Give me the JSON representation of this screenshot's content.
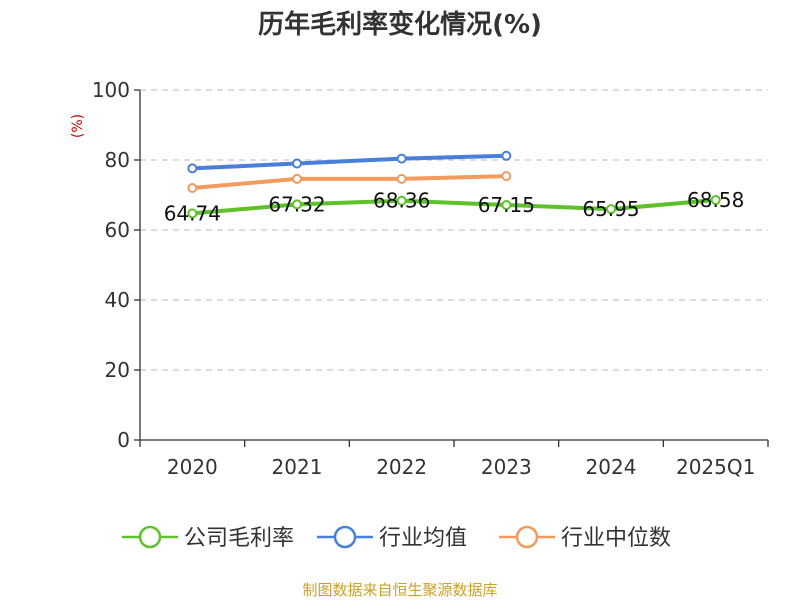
{
  "chart_data": {
    "type": "line",
    "title": "历年毛利率变化情况(%)",
    "ylabel": "(%)",
    "xlabel": "",
    "categories": [
      "2020",
      "2021",
      "2022",
      "2023",
      "2024",
      "2025Q1"
    ],
    "ylim": [
      0,
      100
    ],
    "yticks": [
      0,
      20,
      40,
      60,
      80,
      100
    ],
    "grid": true,
    "legend_position": "bottom",
    "series": [
      {
        "name": "公司毛利率",
        "color": "#5ec12a",
        "values": [
          64.74,
          67.32,
          68.36,
          67.15,
          65.95,
          68.58
        ],
        "show_labels": true
      },
      {
        "name": "行业均值",
        "color": "#4a7fd9",
        "values": [
          77.6,
          79.0,
          80.4,
          81.2,
          null,
          null
        ],
        "show_labels": false
      },
      {
        "name": "行业中位数",
        "color": "#f39a5d",
        "values": [
          72.0,
          74.6,
          74.6,
          75.4,
          null,
          null
        ],
        "show_labels": false
      }
    ]
  },
  "footer": {
    "source": "制图数据来自恒生聚源数据库"
  }
}
